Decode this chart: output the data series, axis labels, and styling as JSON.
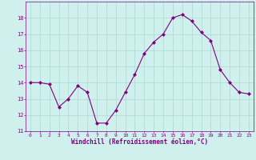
{
  "x": [
    0,
    1,
    2,
    3,
    4,
    5,
    6,
    7,
    8,
    9,
    10,
    11,
    12,
    13,
    14,
    15,
    16,
    17,
    18,
    19,
    20,
    21,
    22,
    23
  ],
  "y": [
    14.0,
    14.0,
    13.9,
    12.5,
    13.0,
    13.8,
    13.4,
    11.5,
    11.5,
    12.3,
    13.4,
    14.5,
    15.8,
    16.5,
    17.0,
    18.0,
    18.2,
    17.8,
    17.1,
    16.6,
    14.8,
    14.0,
    13.4,
    13.3
  ],
  "line_color": "#800080",
  "marker_color": "#800080",
  "bg_color": "#cff0ec",
  "grid_color": "#aad8d3",
  "xlabel": "Windchill (Refroidissement éolien,°C)",
  "xlabel_color": "#800080",
  "tick_color": "#800080",
  "ylim": [
    11,
    19
  ],
  "xlim": [
    -0.5,
    23.5
  ],
  "yticks": [
    11,
    12,
    13,
    14,
    15,
    16,
    17,
    18
  ],
  "xticks": [
    0,
    1,
    2,
    3,
    4,
    5,
    6,
    7,
    8,
    9,
    10,
    11,
    12,
    13,
    14,
    15,
    16,
    17,
    18,
    19,
    20,
    21,
    22,
    23
  ],
  "figsize": [
    3.2,
    2.0
  ],
  "dpi": 100
}
